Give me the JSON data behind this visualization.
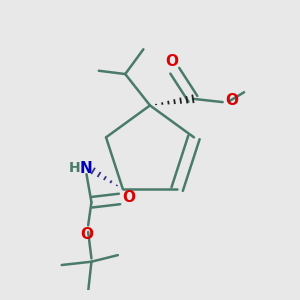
{
  "bg_color": "#e8e8e8",
  "bond_color": "#4a7a6a",
  "bond_width": 1.8,
  "atom_colors": {
    "O": "#dd0000",
    "N": "#0000bb",
    "C": "#4a7a6a",
    "H": "#4a7a6a"
  }
}
